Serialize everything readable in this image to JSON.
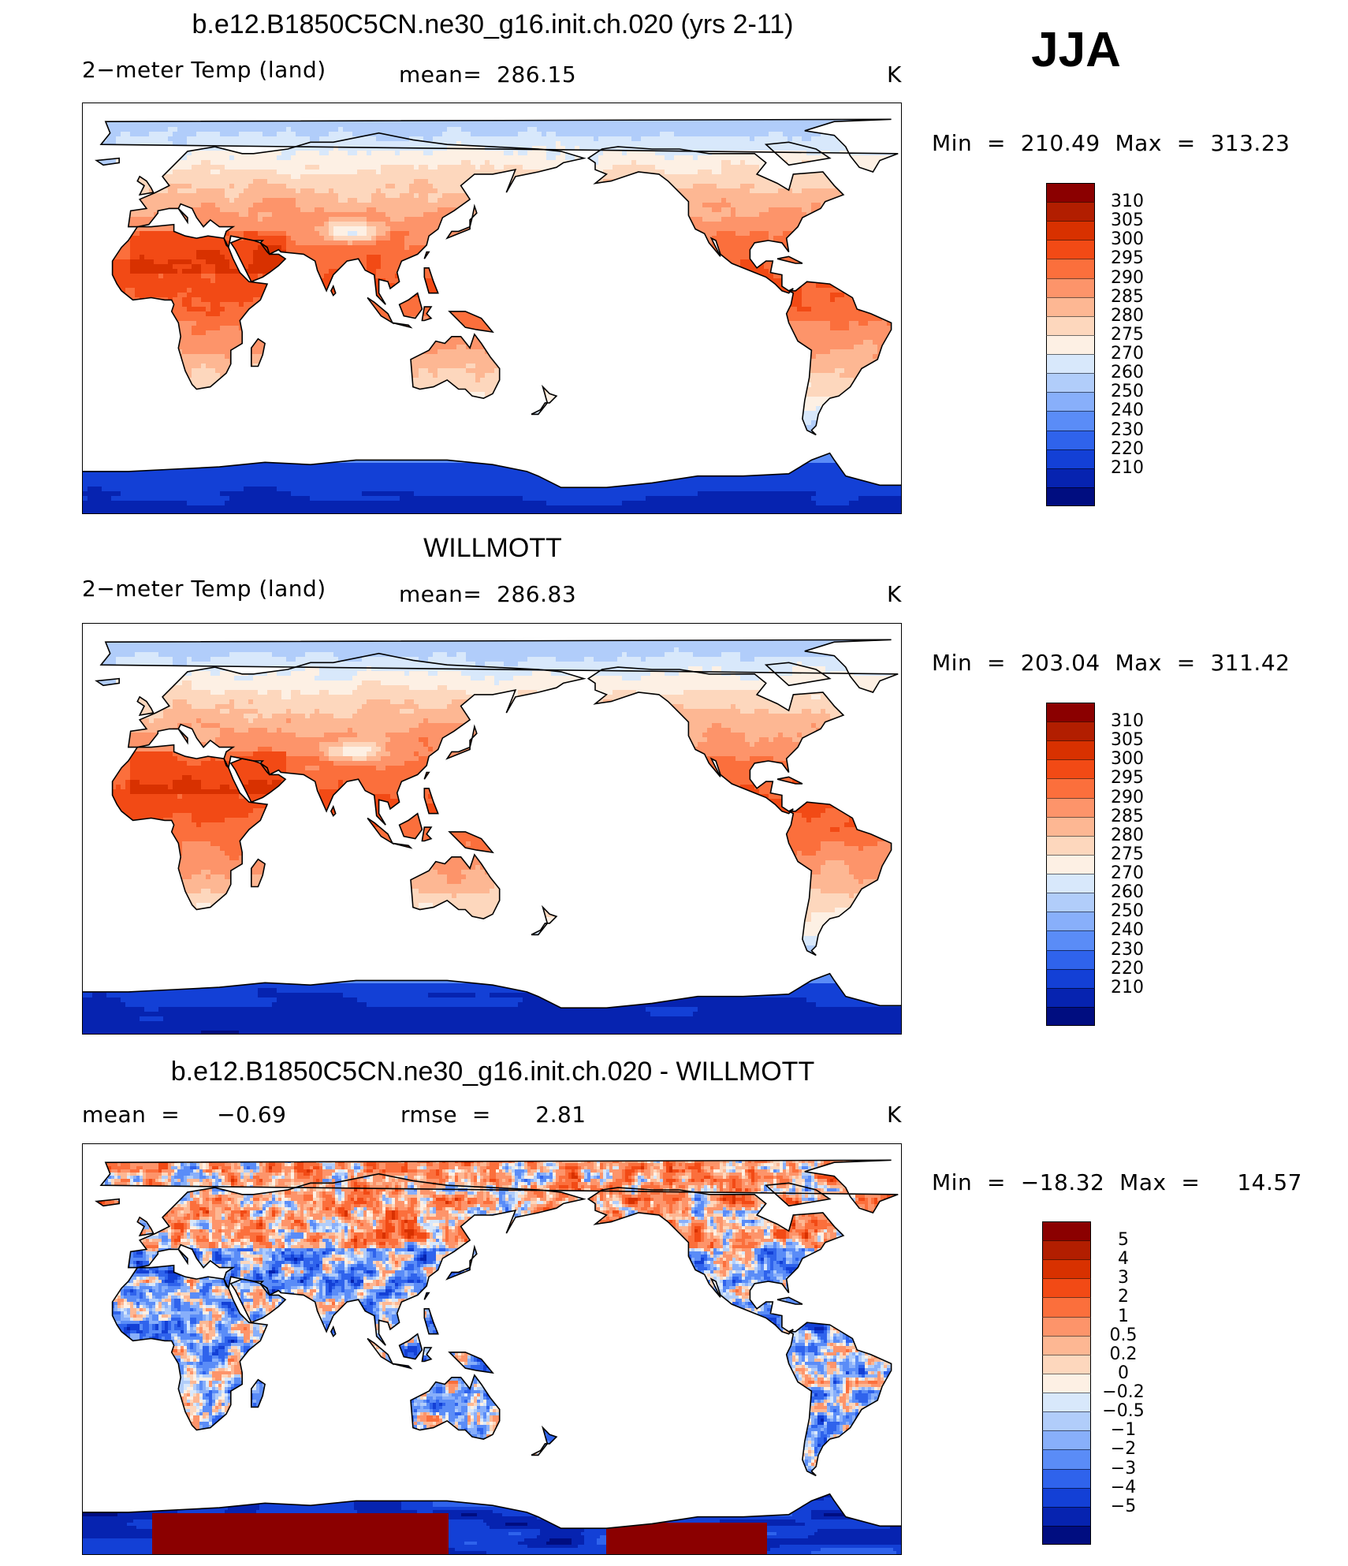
{
  "season": "JJA",
  "panels": [
    {
      "id": "model",
      "title": "b.e12.B1850C5CN.ne30_g16.init.ch.020 (yrs 2-11)",
      "left_text": "2−meter Temp (land)",
      "mid_text": "mean=  286.15",
      "units": "K",
      "minmax": "Min  =  210.49  Max  =  313.23",
      "kind": "abs",
      "antarctic_style": "model"
    },
    {
      "id": "obs",
      "title": "WILLMOTT",
      "left_text": "2−meter Temp (land)",
      "mid_text": "mean=  286.83",
      "units": "K",
      "minmax": "Min  =  203.04  Max  =  311.42",
      "kind": "abs",
      "antarctic_style": "obs"
    },
    {
      "id": "diff",
      "title": "b.e12.B1850C5CN.ne30_g16.init.ch.020 - WILLMOTT",
      "left_text": "mean  =     −0.69",
      "mid_text": "rmse  =      2.81",
      "units": "K",
      "minmax": "Min  =  −18.32  Max  =     14.57",
      "kind": "diff",
      "antarctic_style": "diff"
    }
  ],
  "colorbars": {
    "abs": {
      "labels": [
        "310",
        "305",
        "300",
        "295",
        "290",
        "285",
        "280",
        "275",
        "270",
        "260",
        "250",
        "240",
        "230",
        "220",
        "210"
      ],
      "colors": [
        "#8b0000",
        "#b21e00",
        "#d83100",
        "#f24a15",
        "#fb6f3c",
        "#fd946a",
        "#fdb793",
        "#fdd7bd",
        "#fdf0e4",
        "#d8e8fb",
        "#b1cdfa",
        "#88affa",
        "#5a8cf7",
        "#2f63ec",
        "#1340d6",
        "#0623b0",
        "#000d80"
      ]
    },
    "diff": {
      "labels": [
        "5",
        "4",
        "3",
        "2",
        "1",
        "0.5",
        "0.2",
        "0",
        "−0.2",
        "−0.5",
        "−1",
        "−2",
        "−3",
        "−4",
        "−5"
      ],
      "colors": [
        "#8b0000",
        "#b21e00",
        "#d83100",
        "#f24a15",
        "#fb6f3c",
        "#fd946a",
        "#fdb793",
        "#fdd7bd",
        "#fdf0e4",
        "#d8e8fb",
        "#b1cdfa",
        "#88affa",
        "#5a8cf7",
        "#2f63ec",
        "#1340d6",
        "#0623b0",
        "#000d80"
      ]
    }
  }
}
